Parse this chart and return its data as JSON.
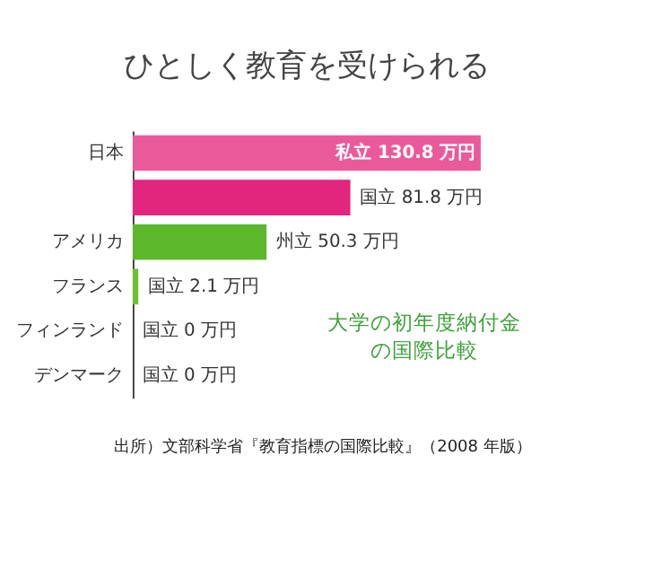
{
  "chart_data": {
    "type": "bar",
    "orientation": "horizontal",
    "title": "ひとしく教育を受けられる",
    "categories": [
      "日本",
      null,
      "アメリカ",
      "フランス",
      "フィンランド",
      "デンマーク"
    ],
    "values": [
      130.8,
      81.8,
      50.3,
      2.1,
      0,
      0
    ],
    "colors": [
      "#ea5a9a",
      "#e2257f",
      "#5cb82a",
      "#6cc22e",
      "#6cc22e",
      "#6cc22e"
    ],
    "value_labels": [
      "私立 130.8 万円",
      "国立 81.8 万円",
      "州立 50.3 万円",
      "国立 2.1 万円",
      "国立 0 万円",
      "国立 0 万円"
    ],
    "annotations": [
      "大学の初年度納付金の国際比較",
      "出所）文部科学省『教育指標の国際比較』（2008 年版）"
    ],
    "grid": false
  }
}
